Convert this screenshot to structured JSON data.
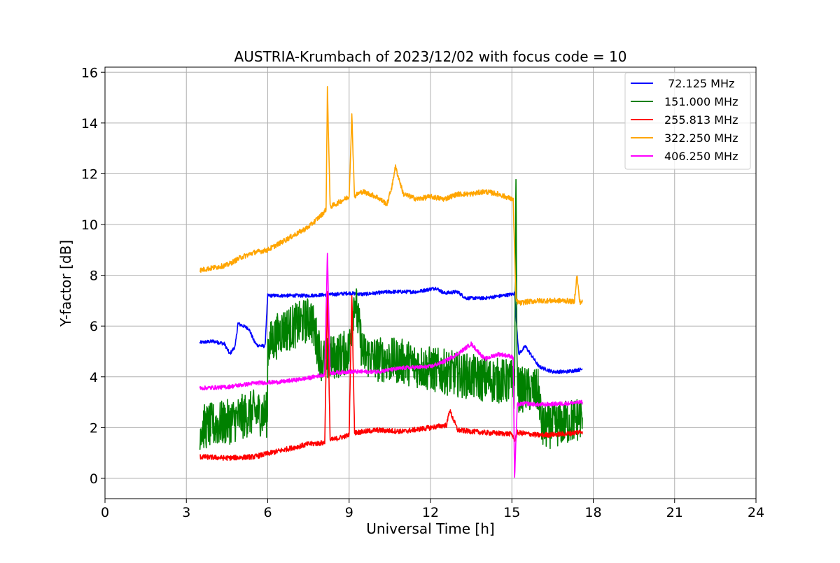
{
  "chart_data": {
    "type": "line",
    "title": "AUSTRIA-Krumbach of 2023/12/02 with focus code = 10",
    "xlabel": "Universal Time [h]",
    "ylabel": "Y-factor [dB]",
    "xlim": [
      0,
      24
    ],
    "ylim": [
      -0.8,
      16.2
    ],
    "x_ticks": [
      0,
      3,
      6,
      9,
      12,
      15,
      18,
      21,
      24
    ],
    "y_ticks": [
      0,
      2,
      4,
      6,
      8,
      10,
      12,
      14,
      16
    ],
    "grid": true,
    "legend_position": "top-right",
    "series": [
      {
        "name": " 72.125 MHz",
        "color": "#0000ff",
        "noise": 0.07,
        "x": [
          3.5,
          4.0,
          4.4,
          4.6,
          4.8,
          4.9,
          5.1,
          5.3,
          5.5,
          5.6,
          5.9,
          6.0,
          6.5,
          7.5,
          8.5,
          9.0,
          9.5,
          10.5,
          11.5,
          12.2,
          12.5,
          13.0,
          13.3,
          14.0,
          15.0,
          15.1,
          15.25,
          15.5,
          16.0,
          16.5,
          17.0,
          17.6
        ],
        "y": [
          5.35,
          5.4,
          5.3,
          4.9,
          5.2,
          6.1,
          6.0,
          5.9,
          5.4,
          5.25,
          5.2,
          7.2,
          7.2,
          7.2,
          7.25,
          7.3,
          7.25,
          7.35,
          7.35,
          7.5,
          7.3,
          7.35,
          7.1,
          7.1,
          7.25,
          7.3,
          4.9,
          5.2,
          4.4,
          4.2,
          4.2,
          4.3
        ]
      },
      {
        "name": "151.000 MHz",
        "color": "#008000",
        "noise": 0.9,
        "x": [
          3.5,
          4.5,
          5.5,
          5.99,
          6.0,
          6.5,
          7.0,
          7.6,
          8.0,
          8.5,
          9.0,
          9.2,
          9.5,
          10.0,
          11.0,
          12.0,
          13.0,
          14.0,
          15.0,
          15.1,
          15.15,
          15.2,
          15.5,
          16.0,
          16.1,
          17.0,
          17.6
        ],
        "y": [
          2.0,
          2.2,
          2.6,
          2.5,
          5.2,
          5.8,
          6.0,
          6.3,
          4.6,
          4.8,
          5.0,
          7.2,
          4.9,
          4.7,
          4.6,
          4.3,
          4.1,
          3.9,
          3.8,
          3.5,
          11.9,
          3.5,
          3.5,
          3.4,
          2.0,
          2.2,
          2.4
        ]
      },
      {
        "name": "255.813 MHz",
        "color": "#ff0000",
        "noise": 0.1,
        "x": [
          3.5,
          4.5,
          5.5,
          6.5,
          7.5,
          8.1,
          8.2,
          8.3,
          9.0,
          9.1,
          9.2,
          10.0,
          11.0,
          12.0,
          12.6,
          12.7,
          13.0,
          14.0,
          15.0,
          15.1,
          15.2,
          16.0,
          17.0,
          17.6
        ],
        "y": [
          0.85,
          0.8,
          0.85,
          1.1,
          1.35,
          1.4,
          7.3,
          1.5,
          1.7,
          7.3,
          1.8,
          1.9,
          1.85,
          2.0,
          2.1,
          2.7,
          1.9,
          1.8,
          1.75,
          1.5,
          1.8,
          1.7,
          1.75,
          1.85
        ]
      },
      {
        "name": "322.250 MHz",
        "color": "#ffa500",
        "noise": 0.1,
        "x": [
          3.5,
          4.0,
          4.5,
          5.0,
          5.5,
          6.0,
          6.5,
          7.0,
          7.5,
          8.0,
          8.15,
          8.2,
          8.3,
          8.5,
          9.0,
          9.1,
          9.2,
          9.3,
          9.5,
          10.0,
          10.4,
          10.6,
          10.7,
          11.0,
          11.5,
          12.0,
          12.5,
          13.0,
          13.5,
          14.0,
          14.5,
          15.0,
          15.05,
          15.15,
          15.3,
          15.5,
          16.0,
          17.0,
          17.3,
          17.4,
          17.5,
          17.6
        ],
        "y": [
          8.2,
          8.3,
          8.4,
          8.7,
          8.9,
          9.0,
          9.3,
          9.6,
          9.9,
          10.4,
          10.6,
          15.4,
          10.7,
          10.8,
          11.1,
          14.3,
          11.1,
          11.2,
          11.3,
          11.1,
          10.8,
          11.6,
          12.3,
          11.2,
          11.0,
          11.1,
          11.0,
          11.2,
          11.2,
          11.3,
          11.2,
          11.0,
          10.95,
          7.0,
          6.9,
          6.95,
          7.0,
          7.0,
          6.95,
          8.0,
          6.95,
          6.95
        ]
      },
      {
        "name": "406.250 MHz",
        "color": "#ff00ff",
        "noise": 0.08,
        "x": [
          3.5,
          4.5,
          5.5,
          6.5,
          7.5,
          8.1,
          8.2,
          8.3,
          9.0,
          10.0,
          11.0,
          12.0,
          12.5,
          13.0,
          13.5,
          14.0,
          14.5,
          15.0,
          15.05,
          15.1,
          15.2,
          15.5,
          16.0,
          17.0,
          17.6
        ],
        "y": [
          3.55,
          3.6,
          3.75,
          3.8,
          3.95,
          4.1,
          8.9,
          4.15,
          4.2,
          4.2,
          4.35,
          4.4,
          4.6,
          4.9,
          5.3,
          4.7,
          4.9,
          4.8,
          4.7,
          0.0,
          2.9,
          2.95,
          2.9,
          2.95,
          3.0
        ]
      }
    ]
  }
}
